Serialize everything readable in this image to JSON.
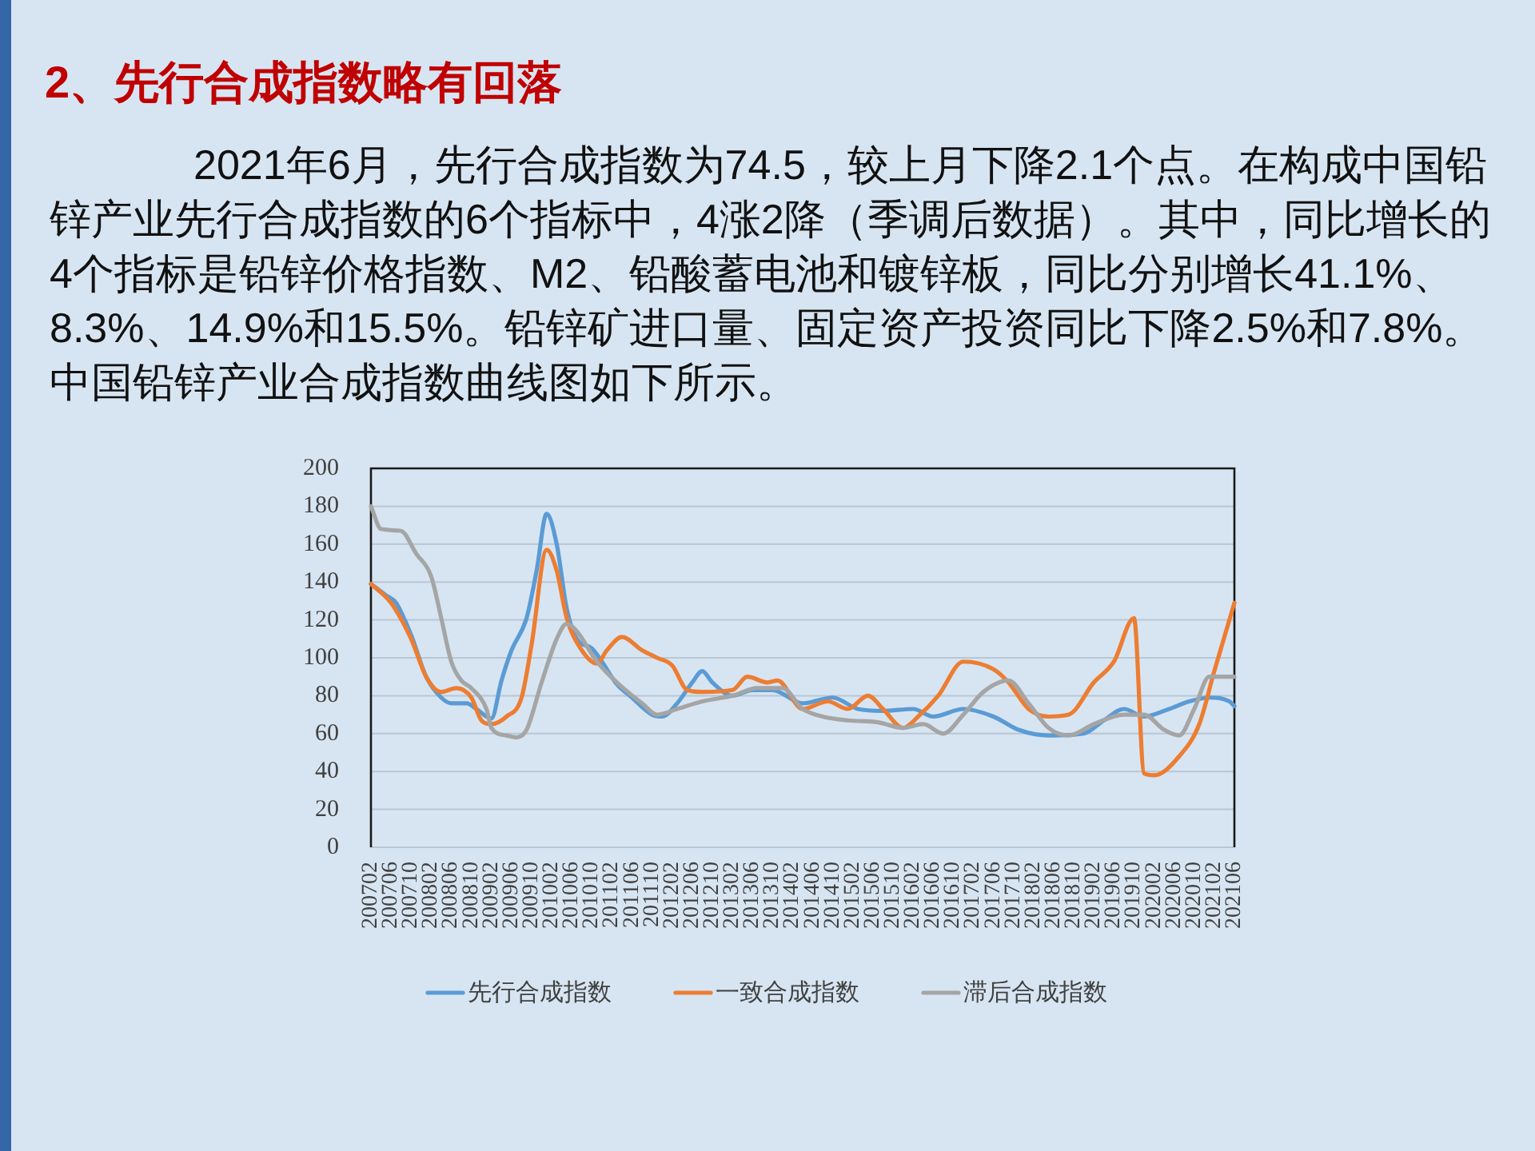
{
  "chart_data": {
    "type": "line",
    "title": "2、先行合成指数略有回落",
    "subtitle": "2021年6月，先行合成指数为74.5，较上月下降2.1个点。在构成中国铅锌产业先行合成指数的6个指标中，4涨2降（季调后数据）。其中，同比增长的4个指标是铅锌价格指数、M2、铅酸蓄电池和镀锌板，同比分别增长41.1%、8.3%、14.9%和15.5%。铅锌矿进口量、固定资产投资同比下降2.5%和7.8%。中国铅锌产业合成指数曲线图如下所示。",
    "xlim": [
      "2007-02",
      "2021-06"
    ],
    "xticks": [
      {
        "value": "2007-02",
        "label": "200702"
      },
      {
        "value": "2007-06",
        "label": "200706"
      },
      {
        "value": "2007-10",
        "label": "200710"
      },
      {
        "value": "2008-02",
        "label": "200802"
      },
      {
        "value": "2008-06",
        "label": "200806"
      },
      {
        "value": "2008-10",
        "label": "200810"
      },
      {
        "value": "2009-02",
        "label": "200902"
      },
      {
        "value": "2009-06",
        "label": "200906"
      },
      {
        "value": "2009-10",
        "label": "200910"
      },
      {
        "value": "2010-02",
        "label": "201002"
      },
      {
        "value": "2010-06",
        "label": "201006"
      },
      {
        "value": "2010-10",
        "label": "201010"
      },
      {
        "value": "2011-02",
        "label": "201102"
      },
      {
        "value": "2011-06",
        "label": "201106"
      },
      {
        "value": "2011-10",
        "label": "201110"
      },
      {
        "value": "2012-02",
        "label": "201202"
      },
      {
        "value": "2012-06",
        "label": "201206"
      },
      {
        "value": "2012-10",
        "label": "201210"
      },
      {
        "value": "2013-02",
        "label": "201302"
      },
      {
        "value": "2013-06",
        "label": "201306"
      },
      {
        "value": "2013-10",
        "label": "201310"
      },
      {
        "value": "2014-02",
        "label": "201402"
      },
      {
        "value": "2014-06",
        "label": "201406"
      },
      {
        "value": "2014-10",
        "label": "201410"
      },
      {
        "value": "2015-02",
        "label": "201502"
      },
      {
        "value": "2015-06",
        "label": "201506"
      },
      {
        "value": "2015-10",
        "label": "201510"
      },
      {
        "value": "2016-02",
        "label": "201602"
      },
      {
        "value": "2016-06",
        "label": "201606"
      },
      {
        "value": "2016-10",
        "label": "201610"
      },
      {
        "value": "2017-02",
        "label": "201702"
      },
      {
        "value": "2017-06",
        "label": "201706"
      },
      {
        "value": "2017-10",
        "label": "201710"
      },
      {
        "value": "2018-02",
        "label": "201802"
      },
      {
        "value": "2018-06",
        "label": "201806"
      },
      {
        "value": "2018-10",
        "label": "201810"
      },
      {
        "value": "2019-02",
        "label": "201902"
      },
      {
        "value": "2019-06",
        "label": "201906"
      },
      {
        "value": "2019-10",
        "label": "201910"
      },
      {
        "value": "2020-02",
        "label": "202002"
      },
      {
        "value": "2020-06",
        "label": "202006"
      },
      {
        "value": "2020-10",
        "label": "202010"
      },
      {
        "value": "2021-02",
        "label": "202102"
      },
      {
        "value": "2021-06",
        "label": "202106"
      }
    ],
    "ylim": [
      0,
      200
    ],
    "yticks": [
      0,
      20,
      40,
      60,
      80,
      100,
      120,
      140,
      160,
      180,
      200
    ],
    "grid": "y",
    "legend": "bottom",
    "series": [
      {
        "name": "先行合成指数",
        "color": "#5b9bd5",
        "x": [
          "2007-02",
          "2007-05",
          "2007-07",
          "2007-10",
          "2008-01",
          "2008-04",
          "2008-06",
          "2008-09",
          "2008-11",
          "2009-01",
          "2009-02",
          "2009-04",
          "2009-06",
          "2009-09",
          "2009-11",
          "2010-01",
          "2010-03",
          "2010-05",
          "2010-07",
          "2010-10",
          "2010-12",
          "2011-03",
          "2011-06",
          "2011-10",
          "2011-12",
          "2012-03",
          "2012-06",
          "2012-08",
          "2012-10",
          "2013-02",
          "2013-06",
          "2013-10",
          "2014-04",
          "2014-10",
          "2015-03",
          "2015-08",
          "2016-02",
          "2016-06",
          "2016-12",
          "2017-06",
          "2017-11",
          "2018-05",
          "2018-12",
          "2019-04",
          "2019-08",
          "2019-12",
          "2020-05",
          "2020-09",
          "2021-01",
          "2021-05",
          "2021-06"
        ],
        "values": [
          139,
          133,
          129,
          112,
          90,
          79,
          76,
          76,
          73,
          69,
          68,
          88,
          104,
          121,
          146,
          176,
          160,
          126,
          110,
          105,
          98,
          86,
          79,
          70,
          69,
          76,
          87,
          93,
          87,
          80,
          83,
          83,
          76,
          79,
          73,
          72,
          73,
          69,
          73,
          69,
          62,
          59,
          60,
          67,
          73,
          69,
          73,
          77,
          79,
          77,
          74.5
        ]
      },
      {
        "name": "一致合成指数",
        "color": "#ed7d31",
        "x": [
          "2007-02",
          "2007-06",
          "2007-10",
          "2008-01",
          "2008-04",
          "2008-07",
          "2008-10",
          "2008-12",
          "2009-02",
          "2009-05",
          "2009-08",
          "2009-10",
          "2010-01",
          "2010-03",
          "2010-05",
          "2010-08",
          "2010-11",
          "2011-01",
          "2011-04",
          "2011-08",
          "2011-11",
          "2012-02",
          "2012-05",
          "2012-08",
          "2013-02",
          "2013-05",
          "2013-09",
          "2013-11",
          "2014-04",
          "2014-09",
          "2015-01",
          "2015-05",
          "2015-08",
          "2015-12",
          "2016-03",
          "2016-07",
          "2016-12",
          "2017-06",
          "2017-09",
          "2018-01",
          "2018-05",
          "2018-09",
          "2019-02",
          "2019-06",
          "2019-10",
          "2019-12",
          "2020-02",
          "2020-07",
          "2020-11",
          "2021-02",
          "2021-06"
        ],
        "values": [
          139,
          129,
          110,
          90,
          82,
          84,
          79,
          67,
          65,
          69,
          79,
          107,
          157,
          146,
          121,
          104,
          97,
          104,
          111,
          104,
          100,
          96,
          83,
          82,
          83,
          90,
          87,
          88,
          73,
          77,
          73,
          80,
          73,
          63,
          69,
          80,
          98,
          94,
          87,
          73,
          69,
          70,
          87,
          98,
          121,
          39,
          38,
          48,
          65,
          93,
          129
        ]
      },
      {
        "name": "滞后合成指数",
        "color": "#a5a5a5",
        "x": [
          "2007-02",
          "2007-04",
          "2007-08",
          "2007-11",
          "2008-02",
          "2008-04",
          "2008-06",
          "2008-08",
          "2008-10",
          "2009-01",
          "2009-02",
          "2009-05",
          "2009-07",
          "2009-09",
          "2009-12",
          "2010-03",
          "2010-05",
          "2010-07",
          "2010-11",
          "2011-03",
          "2011-08",
          "2011-11",
          "2012-03",
          "2012-08",
          "2013-02",
          "2013-07",
          "2013-12",
          "2014-04",
          "2014-08",
          "2015-01",
          "2015-07",
          "2015-12",
          "2016-04",
          "2016-08",
          "2016-12",
          "2017-04",
          "2017-09",
          "2018-01",
          "2018-05",
          "2018-09",
          "2019-02",
          "2019-08",
          "2019-12",
          "2020-04",
          "2020-07",
          "2020-10",
          "2021-01",
          "2021-06"
        ],
        "values": [
          180,
          168,
          167,
          155,
          143,
          121,
          98,
          88,
          84,
          73,
          63,
          59,
          58,
          62,
          87,
          110,
          118,
          114,
          98,
          87,
          76,
          70,
          73,
          77,
          80,
          84,
          84,
          73,
          69,
          67,
          66,
          63,
          65,
          60,
          70,
          82,
          88,
          76,
          63,
          59,
          65,
          70,
          70,
          62,
          59,
          73,
          90,
          90
        ]
      }
    ]
  }
}
